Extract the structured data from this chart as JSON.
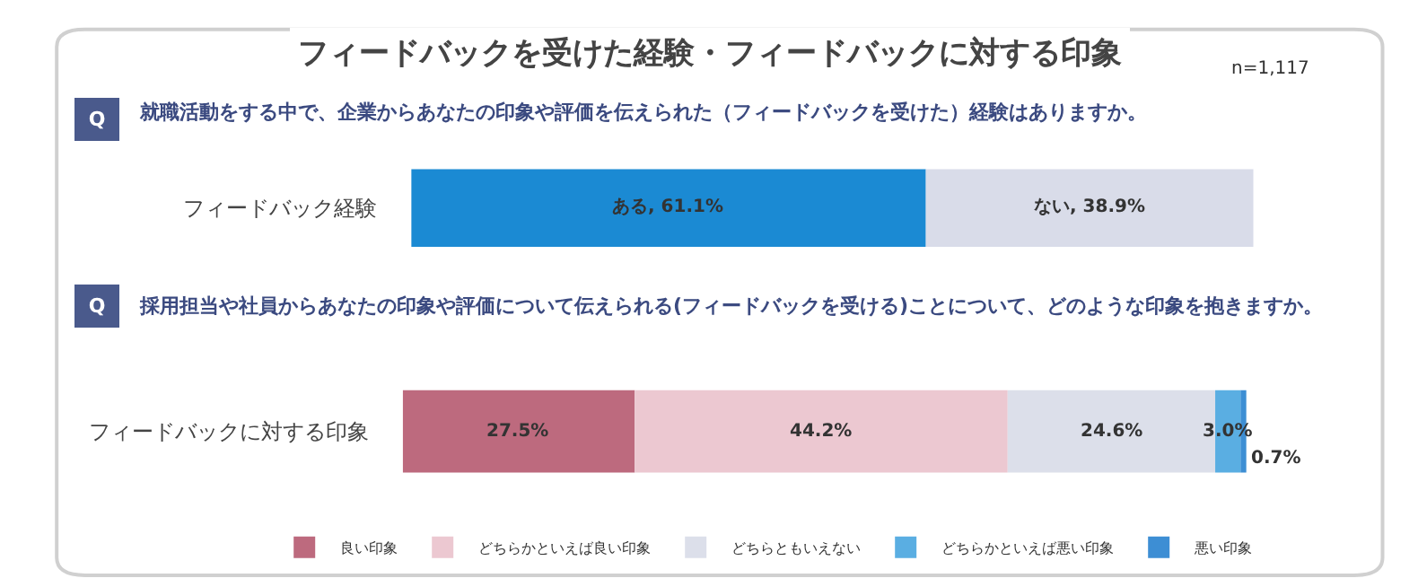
{
  "chart_data": [
    {
      "type": "bar",
      "orientation": "horizontal",
      "stacked": true,
      "title": "フィードバックを受けた経験・フィードバックに対する印象",
      "subtitle": "就職活動をする中で、企業からあなたの印象や評価を伝えられた（フィードバックを受けた）経験はありますか。",
      "annotations": [
        "Q",
        "n=1,117"
      ],
      "categories": [
        "フィードバック経験"
      ],
      "tick_labels": "y",
      "legend": false,
      "series": [
        {
          "color": "#1b8ad3",
          "values": [
            61.1
          ],
          "value_labels": [
            "ある, 61.1%"
          ]
        },
        {
          "color": "#d9dce9",
          "values": [
            38.9
          ],
          "value_labels": [
            "ない, 38.9%"
          ]
        }
      ]
    },
    {
      "type": "bar",
      "orientation": "horizontal",
      "stacked": true,
      "subtitle": "採用担当や社員からあなたの印象や評価について伝えられる(フィードバックを受ける)ことについて、どのような印象を抱きますか。",
      "annotations": [
        "Q"
      ],
      "categories": [
        "フィードバックに対する印象"
      ],
      "tick_labels": "y",
      "legend": "bottom",
      "series": [
        {
          "name": "良い印象",
          "color": "#bd6a7e",
          "values": [
            27.5
          ],
          "value_labels": [
            "27.5%"
          ]
        },
        {
          "name": "どちらかといえば良い印象",
          "color": "#ecc8d1",
          "values": [
            44.2
          ],
          "value_labels": [
            "44.2%"
          ]
        },
        {
          "name": "どちらともいえない",
          "color": "#dcdfea",
          "values": [
            24.6
          ],
          "value_labels": [
            "24.6%"
          ]
        },
        {
          "name": "どちらかといえば悪い印象",
          "color": "#5aaee2",
          "values": [
            3.0
          ],
          "value_labels": [
            "3.0%"
          ]
        },
        {
          "name": "悪い印象",
          "color": "#3d8ed4",
          "values": [
            0.7
          ],
          "value_labels": [
            "0.7%"
          ]
        }
      ]
    }
  ]
}
